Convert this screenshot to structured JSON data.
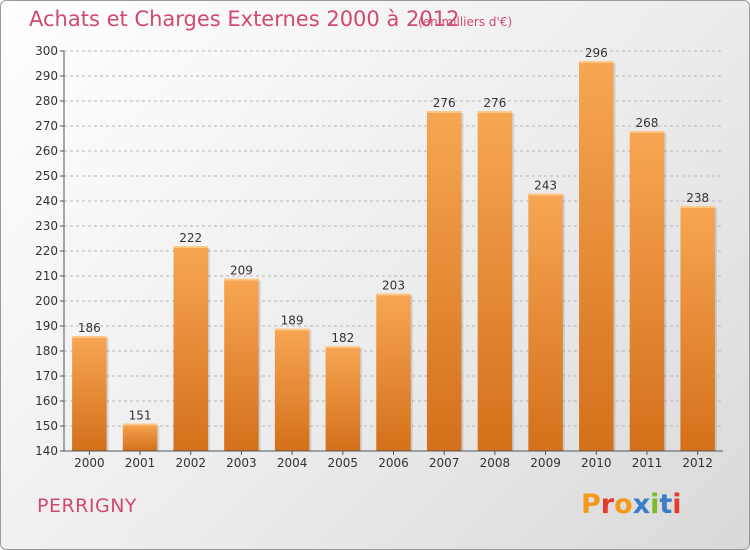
{
  "header": {
    "title": "Achats et Charges Externes 2000 à 2012",
    "subtitle": "(en milliers d'€)"
  },
  "footer": {
    "commune": "PERRIGNY",
    "logo_text": "Proxiti",
    "logo_colors": [
      "#f39a1e",
      "#e43b2d",
      "#f39a1e",
      "#3a7dc9",
      "#7dbb2a",
      "#3a7dc9",
      "#e43b2d"
    ]
  },
  "chart_data": {
    "type": "bar",
    "title": "Achats et Charges Externes 2000 à 2012",
    "subtitle": "(en milliers d'€)",
    "categories": [
      "2000",
      "2001",
      "2002",
      "2003",
      "2004",
      "2005",
      "2006",
      "2007",
      "2008",
      "2009",
      "2010",
      "2011",
      "2012"
    ],
    "values": [
      186,
      151,
      222,
      209,
      189,
      182,
      203,
      276,
      276,
      243,
      296,
      268,
      238
    ],
    "ylim": [
      140,
      300
    ],
    "yticks": [
      140,
      150,
      160,
      170,
      180,
      190,
      200,
      210,
      220,
      230,
      240,
      250,
      260,
      270,
      280,
      290,
      300
    ],
    "grid": true,
    "bar_color_top": "#f7a653",
    "bar_color_bottom": "#d4701a"
  }
}
